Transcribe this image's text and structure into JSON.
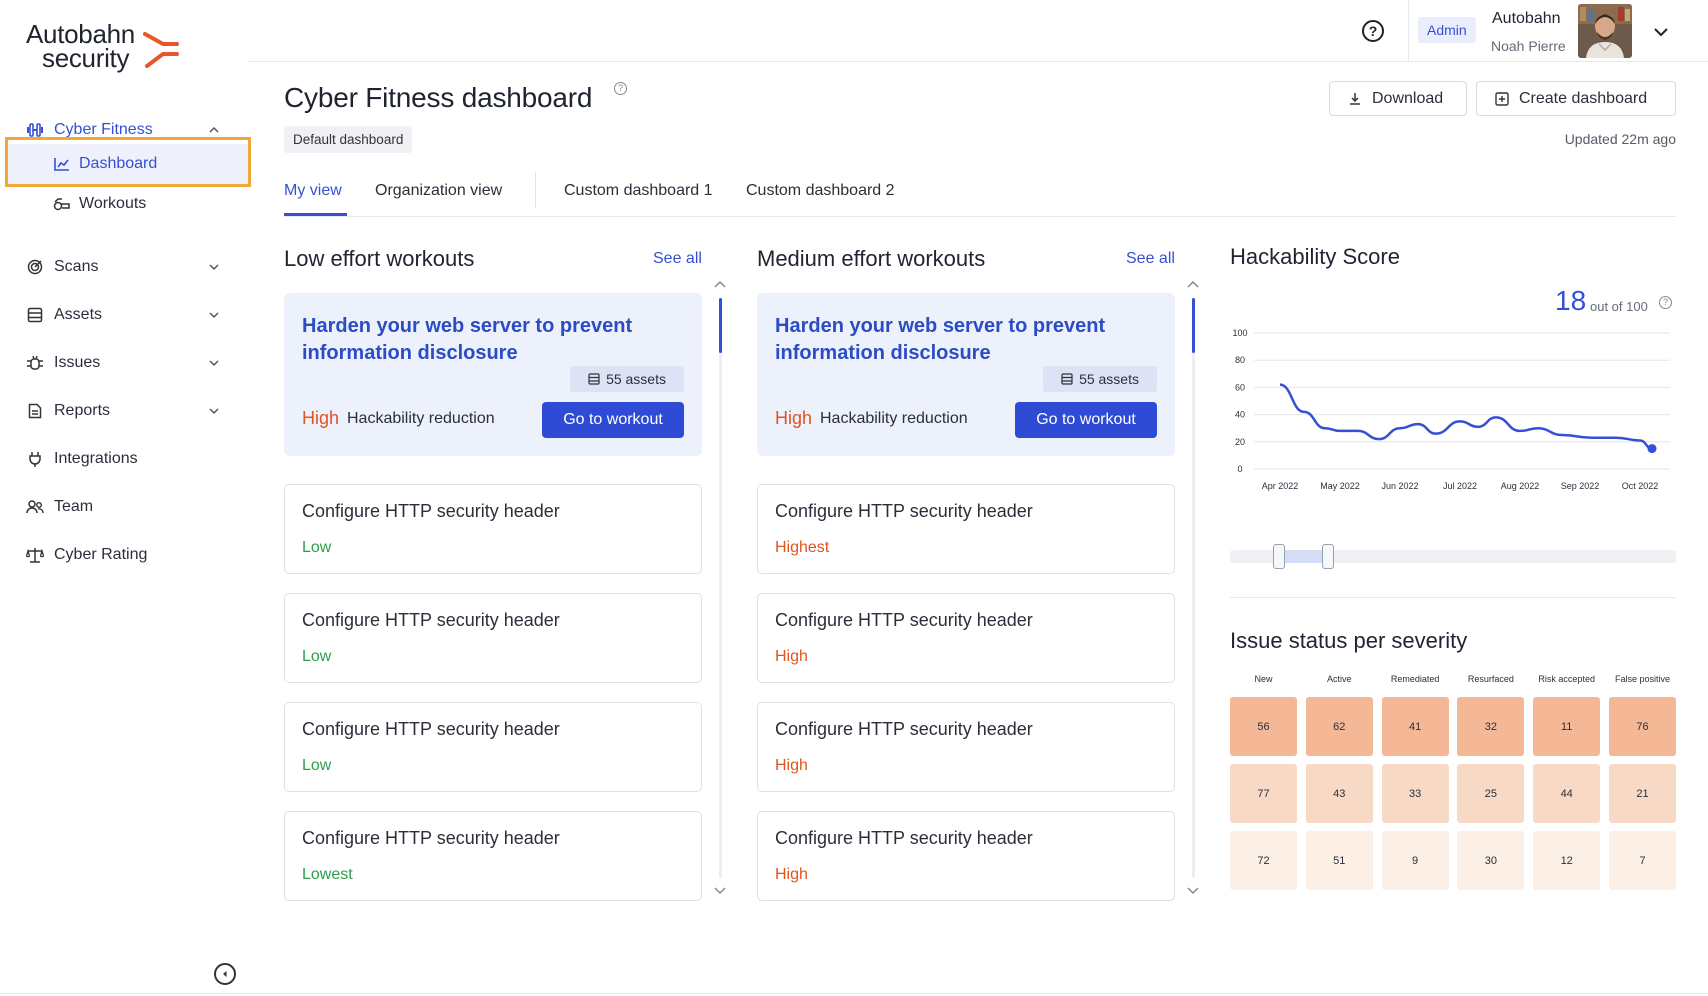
{
  "brand": {
    "line1": "Autobahn",
    "line2": "security",
    "accent": "#e8572a"
  },
  "sidebar": {
    "items": [
      {
        "label": "Cyber Fitness",
        "icon": "dumbbell-icon",
        "expanded": true
      },
      {
        "label": "Scans",
        "icon": "radar-icon"
      },
      {
        "label": "Assets",
        "icon": "server-icon"
      },
      {
        "label": "Issues",
        "icon": "bug-icon"
      },
      {
        "label": "Reports",
        "icon": "report-icon"
      },
      {
        "label": "Integrations",
        "icon": "plug-icon"
      },
      {
        "label": "Team",
        "icon": "team-icon"
      },
      {
        "label": "Cyber Rating",
        "icon": "scale-icon"
      }
    ],
    "sub_items": [
      {
        "label": "Dashboard",
        "icon": "chart-icon",
        "current": true
      },
      {
        "label": "Workouts",
        "icon": "workouts-icon"
      }
    ]
  },
  "topbar": {
    "role": "Admin",
    "org": "Autobahn",
    "user": "Noah Pierre"
  },
  "page": {
    "title": "Cyber Fitness dashboard",
    "tag": "Default dashboard",
    "download_label": "Download",
    "create_label": "Create dashboard",
    "updated": "Updated 22m ago"
  },
  "tabs": [
    "My view",
    "Organization view",
    "Custom dashboard 1",
    "Custom dashboard 2"
  ],
  "low_effort": {
    "title": "Low effort workouts",
    "see_all": "See all",
    "featured": {
      "title": "Harden your web server to prevent information disclosure",
      "assets": "55 assets",
      "level": "High",
      "reduction_label": "Hackability reduction",
      "button": "Go to workout"
    },
    "cards": [
      {
        "title": "Configure HTTP security header",
        "level": "Low"
      },
      {
        "title": "Configure HTTP security header",
        "level": "Low"
      },
      {
        "title": "Configure HTTP security header",
        "level": "Low"
      },
      {
        "title": "Configure HTTP security header",
        "level": "Lowest"
      }
    ]
  },
  "medium_effort": {
    "title": "Medium effort workouts",
    "see_all": "See all",
    "featured": {
      "title": "Harden your web server to prevent information disclosure",
      "assets": "55 assets",
      "level": "High",
      "reduction_label": "Hackability reduction",
      "button": "Go to workout"
    },
    "cards": [
      {
        "title": "Configure HTTP security header",
        "level": "Highest"
      },
      {
        "title": "Configure HTTP security header",
        "level": "High"
      },
      {
        "title": "Configure HTTP security header",
        "level": "High"
      },
      {
        "title": "Configure HTTP security header",
        "level": "High"
      }
    ]
  },
  "hackability": {
    "title": "Hackability Score",
    "score": "18",
    "out_of": "out of 100"
  },
  "chart_data": {
    "type": "line",
    "title": "Hackability Score",
    "x": [
      "Apr 2022",
      "May 2022",
      "Jun 2022",
      "Jul 2022",
      "Aug 2022",
      "Sep 2022",
      "Oct 2022"
    ],
    "ylim": [
      0,
      100
    ],
    "yticks": [
      0,
      20,
      40,
      60,
      80,
      100
    ],
    "series": [
      {
        "color": "#3550d4",
        "points": [
          [
            0.0,
            62
          ],
          [
            0.4,
            42
          ],
          [
            0.75,
            30
          ],
          [
            1.0,
            28
          ],
          [
            1.3,
            28
          ],
          [
            1.65,
            22
          ],
          [
            2.0,
            30
          ],
          [
            2.3,
            33
          ],
          [
            2.6,
            26
          ],
          [
            3.0,
            35
          ],
          [
            3.3,
            31
          ],
          [
            3.6,
            38
          ],
          [
            4.0,
            28
          ],
          [
            4.3,
            30
          ],
          [
            4.7,
            25
          ],
          [
            5.2,
            23
          ],
          [
            5.6,
            23
          ],
          [
            6.0,
            21
          ],
          [
            6.2,
            15
          ]
        ]
      }
    ],
    "range_selection": [
      0.11,
      0.22
    ],
    "grid": true
  },
  "severity": {
    "title": "Issue status per severity",
    "columns": [
      "New",
      "Active",
      "Remediated",
      "Resurfaced",
      "Risk accepted",
      "False positive"
    ],
    "rows": [
      {
        "color": "#f4b896",
        "values": [
          "56",
          "62",
          "41",
          "32",
          "11",
          "76"
        ]
      },
      {
        "color": "#f8d9c5",
        "values": [
          "77",
          "43",
          "33",
          "25",
          "44",
          "21"
        ]
      },
      {
        "color": "#fcefe6",
        "values": [
          "72",
          "51",
          "9",
          "30",
          "12",
          "7"
        ]
      }
    ]
  }
}
